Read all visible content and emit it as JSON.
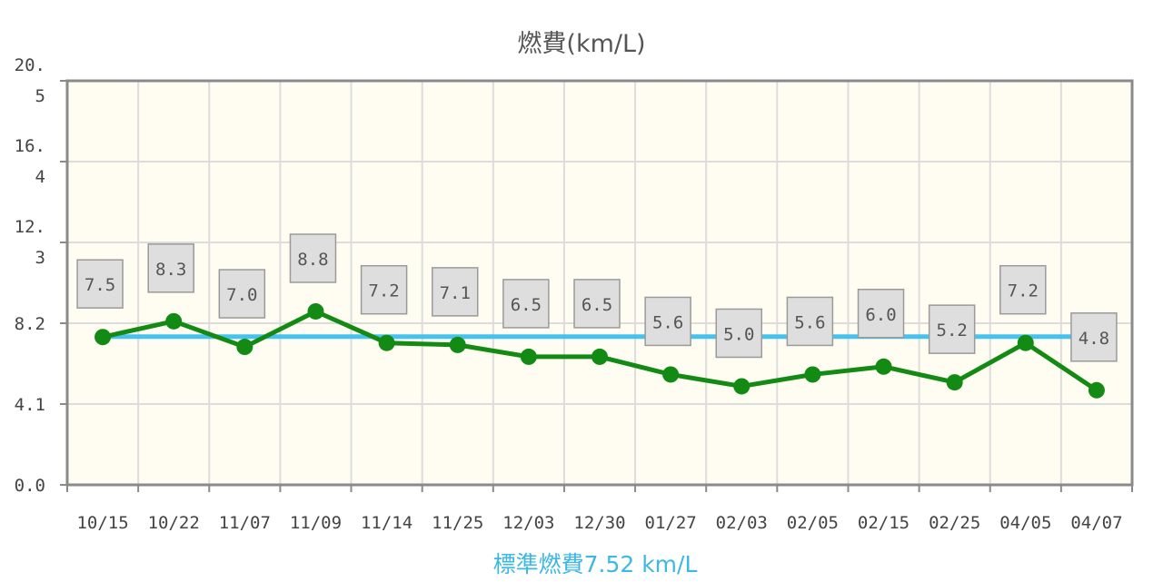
{
  "chart_data": {
    "type": "line",
    "title": "燃費(km/L)",
    "categories": [
      "10/15",
      "10/22",
      "11/07",
      "11/09",
      "11/14",
      "11/25",
      "12/03",
      "12/30",
      "01/27",
      "02/03",
      "02/05",
      "02/15",
      "02/25",
      "04/05",
      "04/07"
    ],
    "series": [
      {
        "values": [
          7.5,
          8.3,
          7.0,
          8.8,
          7.2,
          7.1,
          6.5,
          6.5,
          5.6,
          5.0,
          5.6,
          6.0,
          5.2,
          7.2,
          4.8
        ],
        "color": "#138a13"
      }
    ],
    "data_labels": [
      "7.5",
      "8.3",
      "7.0",
      "8.8",
      "7.2",
      "7.1",
      "6.5",
      "6.5",
      "5.6",
      "5.0",
      "5.6",
      "6.0",
      "5.2",
      "7.2",
      "4.8"
    ],
    "reference_line": {
      "value": 7.52,
      "color": "#45c3ee"
    },
    "y_ticks": [
      {
        "value": 0,
        "label": "0.0"
      },
      {
        "value": 4.1,
        "label": "4.1"
      },
      {
        "value": 8.2,
        "label": "8.2"
      },
      {
        "value": 12.3,
        "label_lines": [
          "12.",
          "3"
        ]
      },
      {
        "value": 16.4,
        "label_lines": [
          "16.",
          "4"
        ]
      },
      {
        "value": 20.5,
        "label_lines": [
          "20.",
          "5"
        ]
      }
    ],
    "ylim": [
      0,
      20.5
    ],
    "grid": true,
    "plot_background": "#fffdf2",
    "caption": "標準燃費7.52 km/L"
  }
}
